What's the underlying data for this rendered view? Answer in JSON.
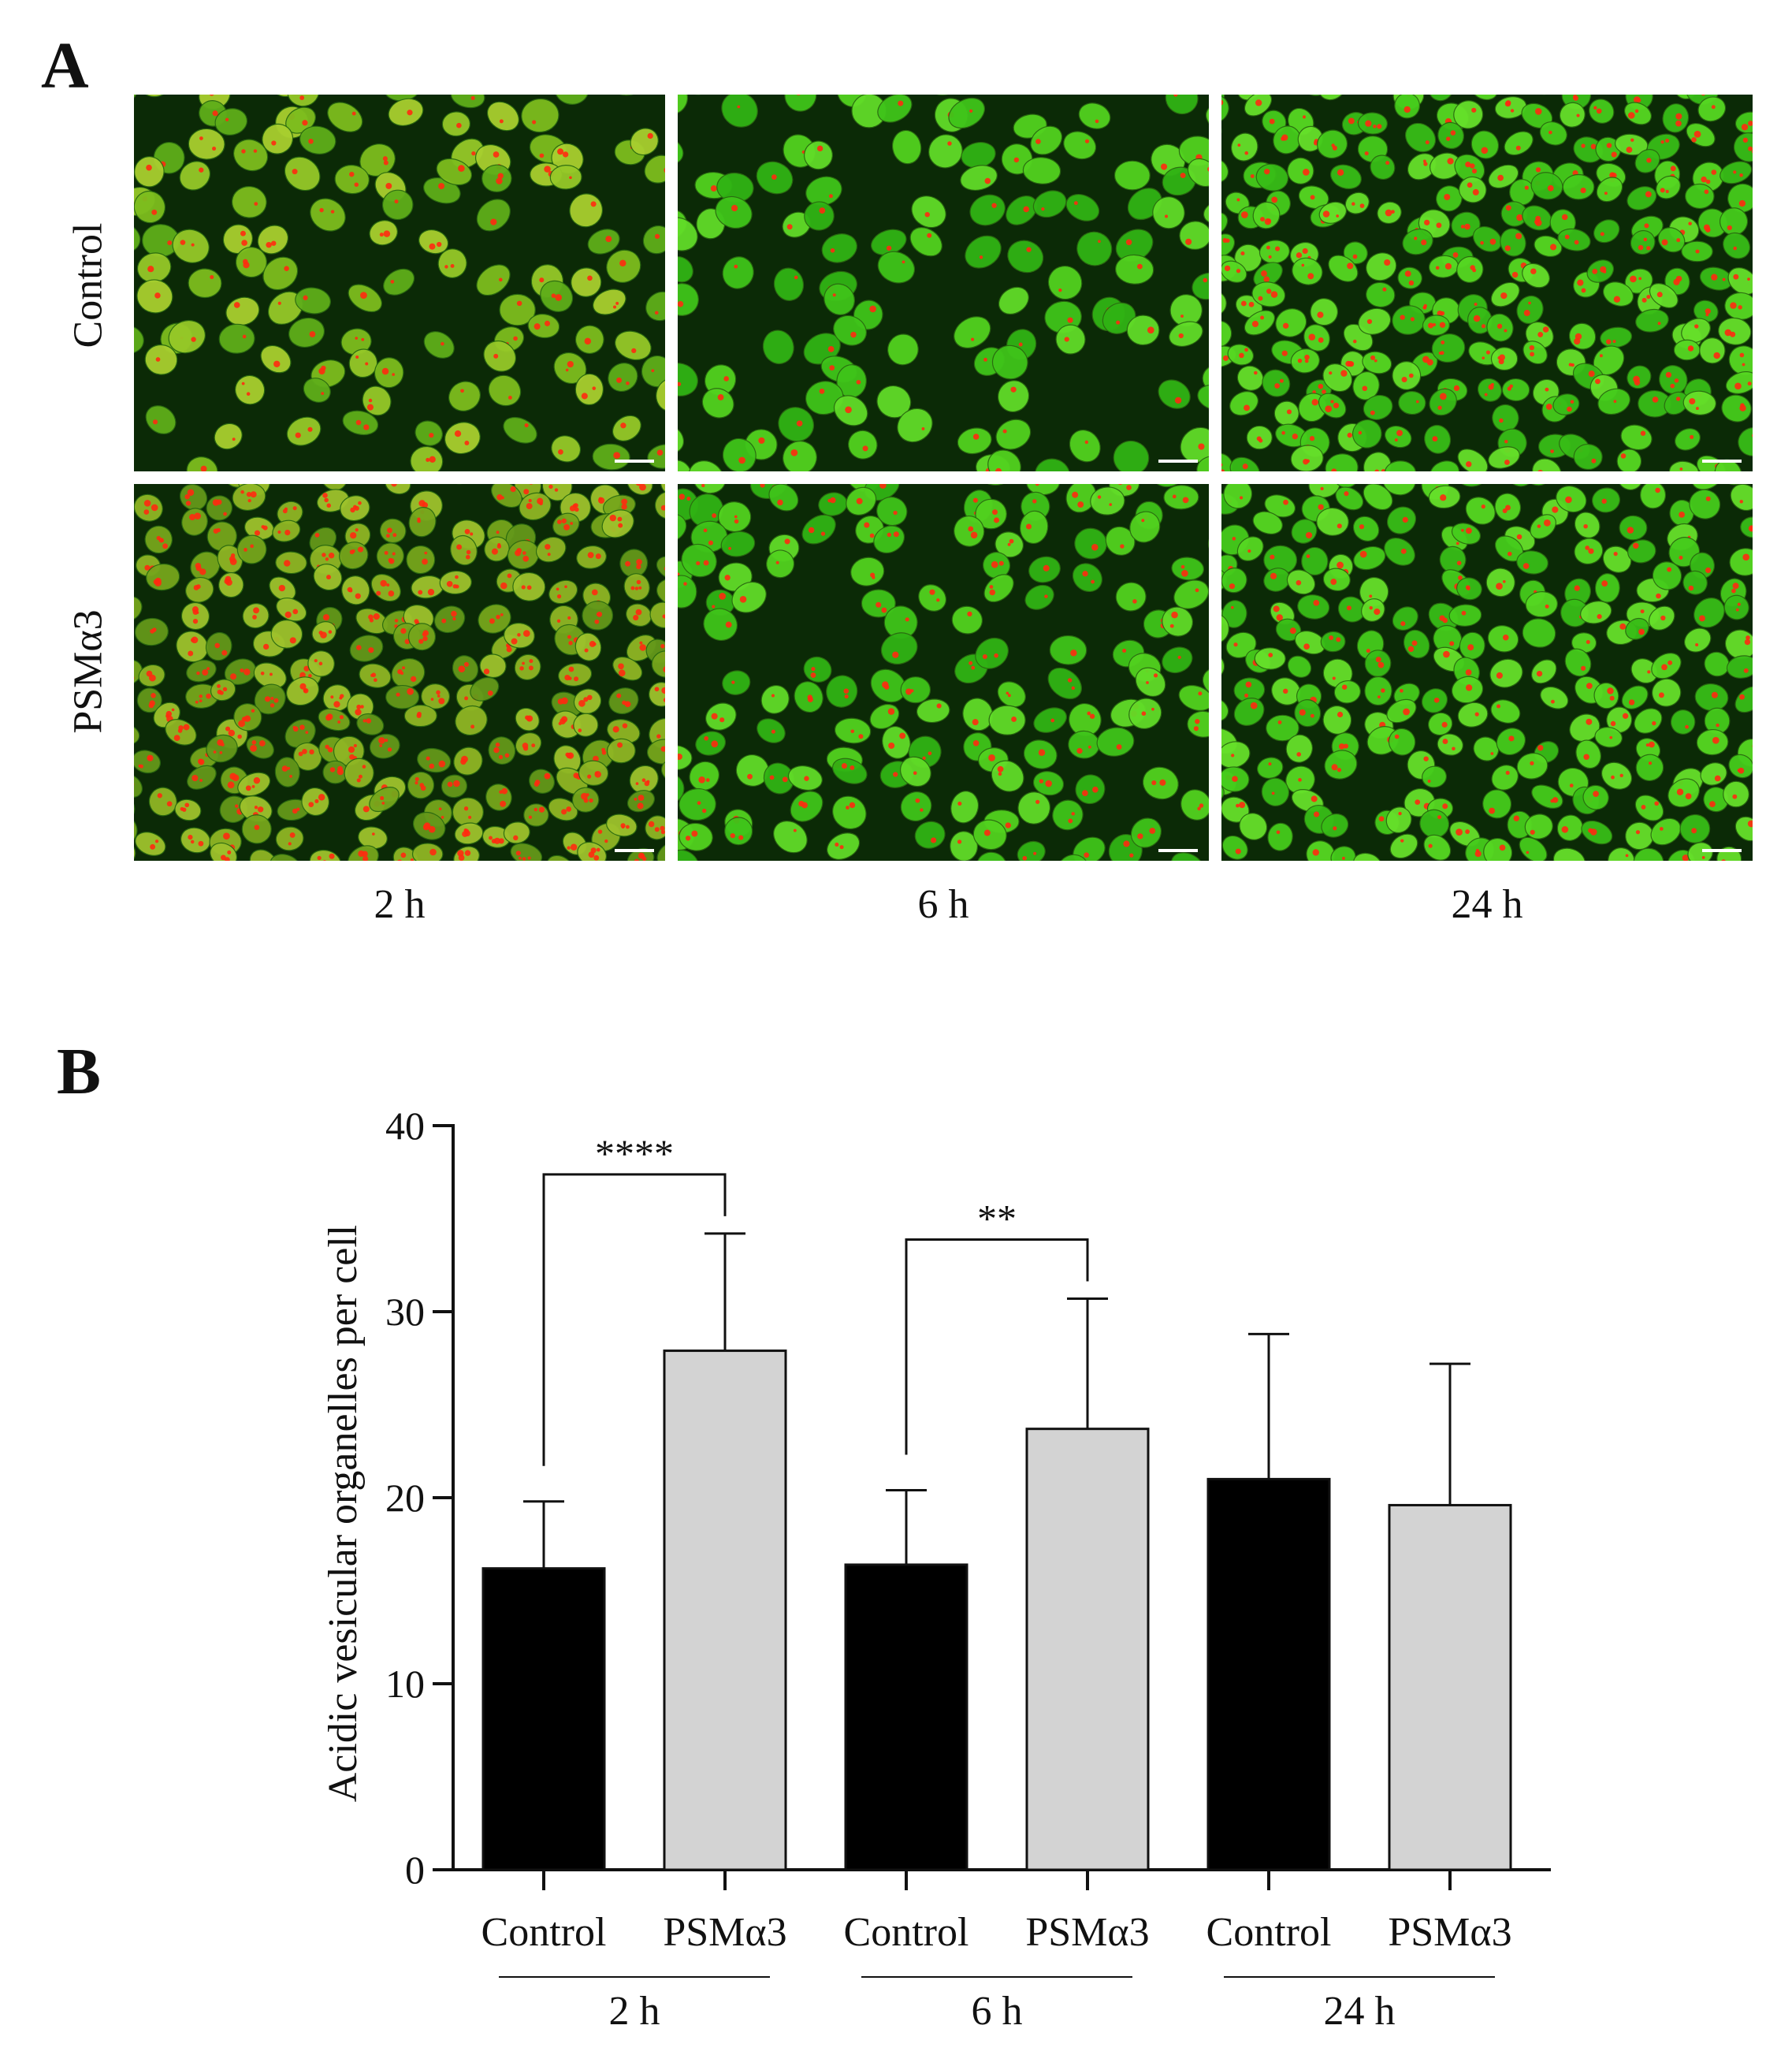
{
  "panels": {
    "a_letter": "A",
    "b_letter": "B"
  },
  "panel_a": {
    "row_labels": [
      "Control",
      "PSMα3"
    ],
    "col_labels": [
      "2 h",
      "6 h",
      "24 h"
    ],
    "colors": {
      "background": "#0c2a06",
      "cell_green": "#4fc21c",
      "vesicle_red": "#ff2a10",
      "scale_bar": "#ffffff"
    },
    "images": [
      {
        "row": 0,
        "col": 0,
        "tone": "yellow-green",
        "density": 0.55,
        "red_dots": 1.0
      },
      {
        "row": 0,
        "col": 1,
        "tone": "green",
        "density": 0.5,
        "red_dots": 0.6
      },
      {
        "row": 0,
        "col": 2,
        "tone": "bright-green",
        "density": 0.9,
        "red_dots": 1.4
      },
      {
        "row": 1,
        "col": 0,
        "tone": "olive-green",
        "density": 0.85,
        "red_dots": 2.2
      },
      {
        "row": 1,
        "col": 1,
        "tone": "green",
        "density": 0.6,
        "red_dots": 1.2
      },
      {
        "row": 1,
        "col": 2,
        "tone": "bright-green",
        "density": 0.9,
        "red_dots": 0.9
      }
    ]
  },
  "chart_data": {
    "type": "bar",
    "ylabel": "Acidic vesicular organelles per cell",
    "ylim": [
      0,
      40
    ],
    "yticks": [
      0,
      10,
      20,
      30,
      40
    ],
    "categories": [
      "Control",
      "PSMα3",
      "Control",
      "PSMα3",
      "Control",
      "PSMα3"
    ],
    "groups": [
      "2 h",
      "6 h",
      "24 h"
    ],
    "values": [
      16.2,
      27.9,
      16.4,
      23.7,
      21.0,
      19.6
    ],
    "errors": [
      3.6,
      6.3,
      4.0,
      7.0,
      7.8,
      7.6
    ],
    "bar_colors": [
      "#000000",
      "#d3d3d3",
      "#000000",
      "#d3d3d3",
      "#000000",
      "#d3d3d3"
    ],
    "significance": [
      {
        "from": 0,
        "to": 1,
        "label": "****"
      },
      {
        "from": 2,
        "to": 3,
        "label": "**"
      }
    ]
  }
}
